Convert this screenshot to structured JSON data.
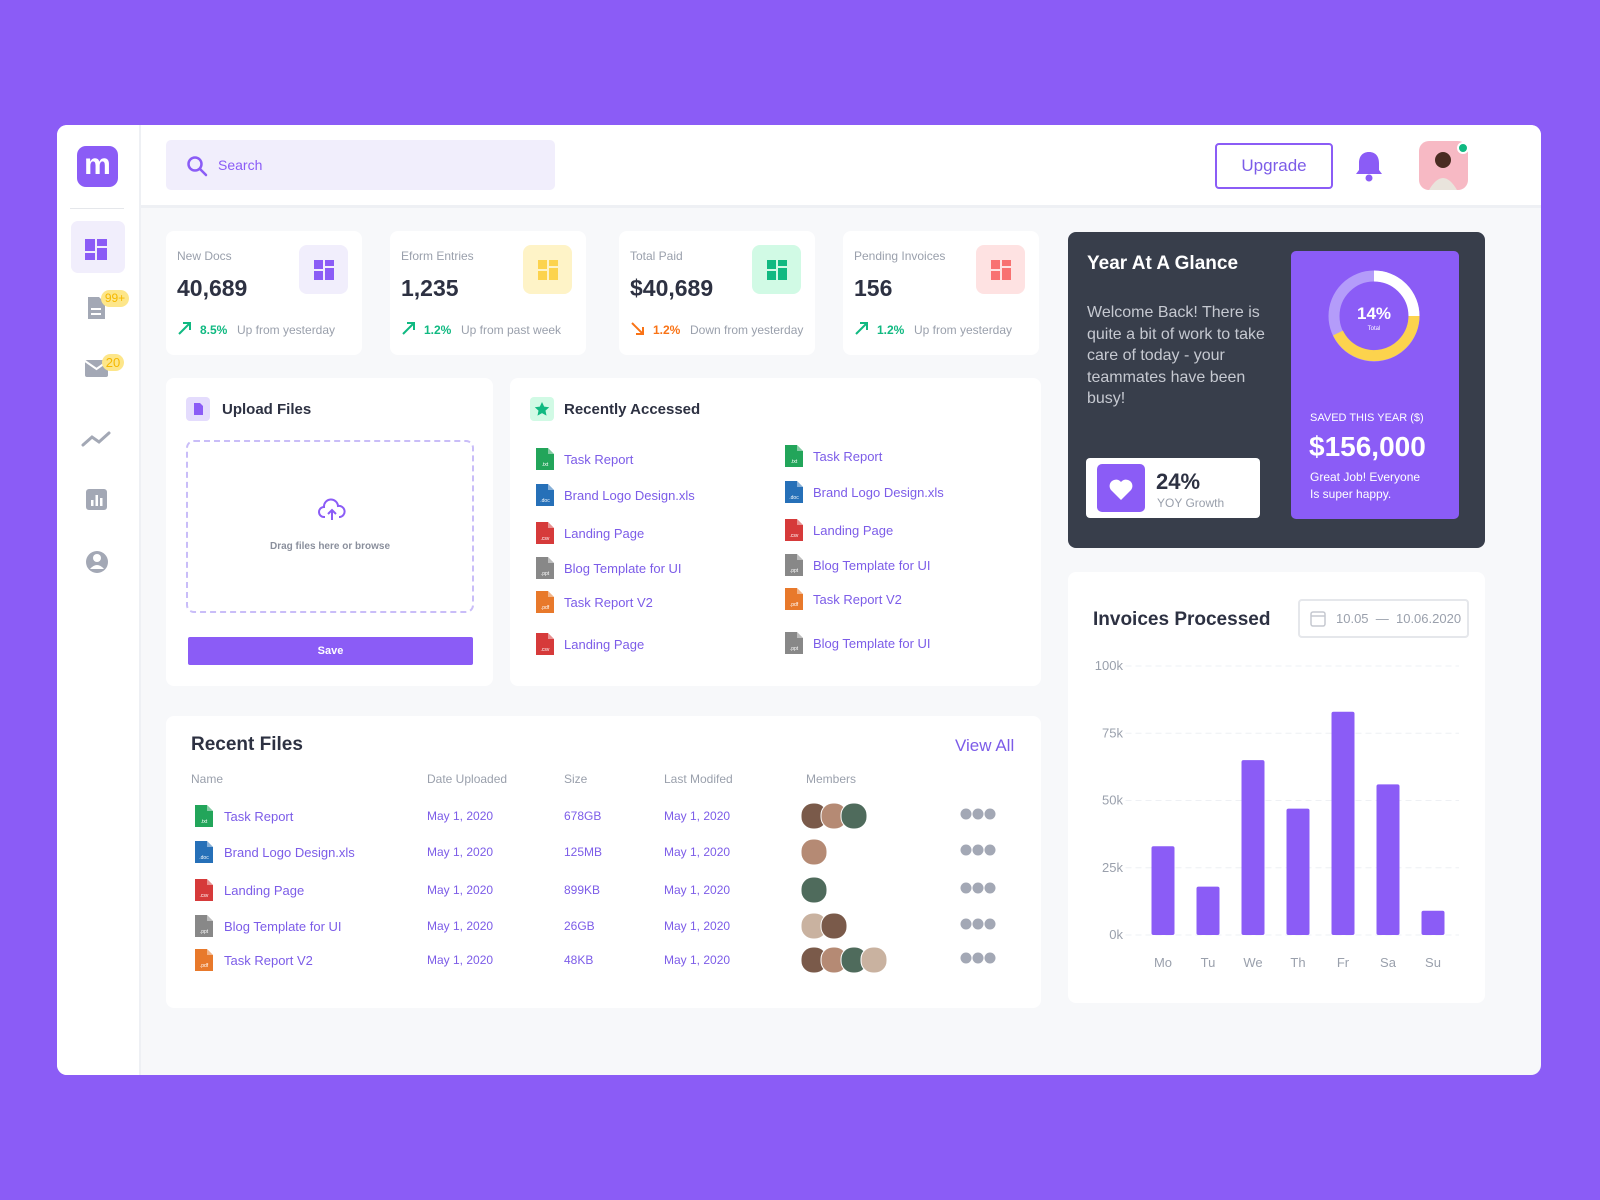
{
  "sidebar": {
    "logo": "m",
    "badges": [
      "99+",
      "20"
    ]
  },
  "header": {
    "search": "Search",
    "upgrade": "Upgrade"
  },
  "stats": [
    {
      "label": "New Docs",
      "value": "40,689",
      "change": "8.5%",
      "note": "Up from yesterday",
      "direction": "up",
      "color": "#10b981",
      "icon_color": "#8b5cf6",
      "icon_bg": "#f1eefc"
    },
    {
      "label": "Eform Entries",
      "value": "1,235",
      "change": "1.2%",
      "note": "Up from past week",
      "direction": "up",
      "color": "#10b981",
      "icon_color": "#fcd34d",
      "icon_bg": "#fef3c7"
    },
    {
      "label": "Total Paid",
      "value": "$40,689",
      "change": "1.2%",
      "note": "Down from yesterday",
      "direction": "down",
      "color": "#f97316",
      "icon_color": "#10b981",
      "icon_bg": "#d1fae5"
    },
    {
      "label": "Pending Invoices",
      "value": "156",
      "change": "1.2%",
      "note": "Up from yesterday",
      "direction": "up",
      "color": "#10b981",
      "icon_color": "#f87171",
      "icon_bg": "#fee2e2"
    }
  ],
  "upload": {
    "title": "Upload Files",
    "hint": "Drag files here or browse",
    "button": "Save"
  },
  "recent_accessed": {
    "title": "Recently Accessed",
    "columns": [
      [
        {
          "name": "Task Report",
          "ext": ".txt",
          "color": "#22a55a"
        },
        {
          "name": "Brand Logo Design.xls",
          "ext": ".doc",
          "color": "#2670b8"
        },
        {
          "name": "Landing Page",
          "ext": ".csv",
          "color": "#d63a3a"
        },
        {
          "name": "Blog Template for UI",
          "ext": ".ppt",
          "color": "#888888"
        },
        {
          "name": "Task Report V2",
          "ext": ".pdf",
          "color": "#e8792b"
        },
        {
          "name": "Landing Page",
          "ext": ".csv",
          "color": "#d63a3a"
        }
      ],
      [
        {
          "name": "Task Report",
          "ext": ".txt",
          "color": "#22a55a"
        },
        {
          "name": "Brand Logo Design.xls",
          "ext": ".doc",
          "color": "#2670b8"
        },
        {
          "name": "Landing Page",
          "ext": ".csv",
          "color": "#d63a3a"
        },
        {
          "name": "Blog Template for UI",
          "ext": ".ppt",
          "color": "#888888"
        },
        {
          "name": "Task Report V2",
          "ext": ".pdf",
          "color": "#e8792b"
        },
        {
          "name": "Blog Template for UI",
          "ext": ".ppt",
          "color": "#888888"
        }
      ]
    ]
  },
  "recent_files": {
    "title": "Recent Files",
    "view_all": "View All",
    "columns": [
      "Name",
      "Date Uploaded",
      "Size",
      "Last Modifed",
      "Members"
    ],
    "rows": [
      {
        "name": "Task Report",
        "ext": ".txt",
        "color": "#22a55a",
        "uploaded": "May 1, 2020",
        "size": "678GB",
        "modified": "May 1, 2020"
      },
      {
        "name": "Brand Logo Design.xls",
        "ext": ".doc",
        "color": "#2670b8",
        "uploaded": "May 1, 2020",
        "size": "125MB",
        "modified": "May 1, 2020"
      },
      {
        "name": "Landing Page",
        "ext": ".csv",
        "color": "#d63a3a",
        "uploaded": "May 1, 2020",
        "size": "899KB",
        "modified": "May 1, 2020"
      },
      {
        "name": "Blog Template for UI",
        "ext": ".ppt",
        "color": "#888888",
        "uploaded": "May 1, 2020",
        "size": "26GB",
        "modified": "May 1, 2020"
      },
      {
        "name": "Task Report V2",
        "ext": ".pdf",
        "color": "#e8792b",
        "uploaded": "May 1, 2020",
        "size": "48KB",
        "modified": "May 1, 2020"
      }
    ]
  },
  "glance": {
    "title": "Year At A Glance",
    "welcome": "Welcome Back! There is quite a bit of work to take care of today - your teammates have been busy!",
    "growth": "24%",
    "growth_label": "YOY Growth",
    "donut_value": "14%",
    "donut_label": "Total",
    "saved_label": "SAVED THIS YEAR ($)",
    "saved": "$156,000",
    "message": "Great Job! Everyone Is super happy."
  },
  "invoices": {
    "title": "Invoices Processed",
    "date_range": "10.05  —  10.06.2020"
  },
  "chart_data": {
    "type": "bar",
    "categories": [
      "Mo",
      "Tu",
      "We",
      "Th",
      "Fr",
      "Sa",
      "Su"
    ],
    "values": [
      33000,
      18000,
      65000,
      47000,
      83000,
      56000,
      9000
    ],
    "color": "#8b5cf6",
    "ylim": [
      0,
      100000
    ],
    "yticks": [
      {
        "value": 0,
        "label": "0k"
      },
      {
        "value": 25000,
        "label": "25k"
      },
      {
        "value": 50000,
        "label": "50k"
      },
      {
        "value": 75000,
        "label": "75k"
      },
      {
        "value": 100000,
        "label": "100k"
      }
    ],
    "grid": true
  }
}
